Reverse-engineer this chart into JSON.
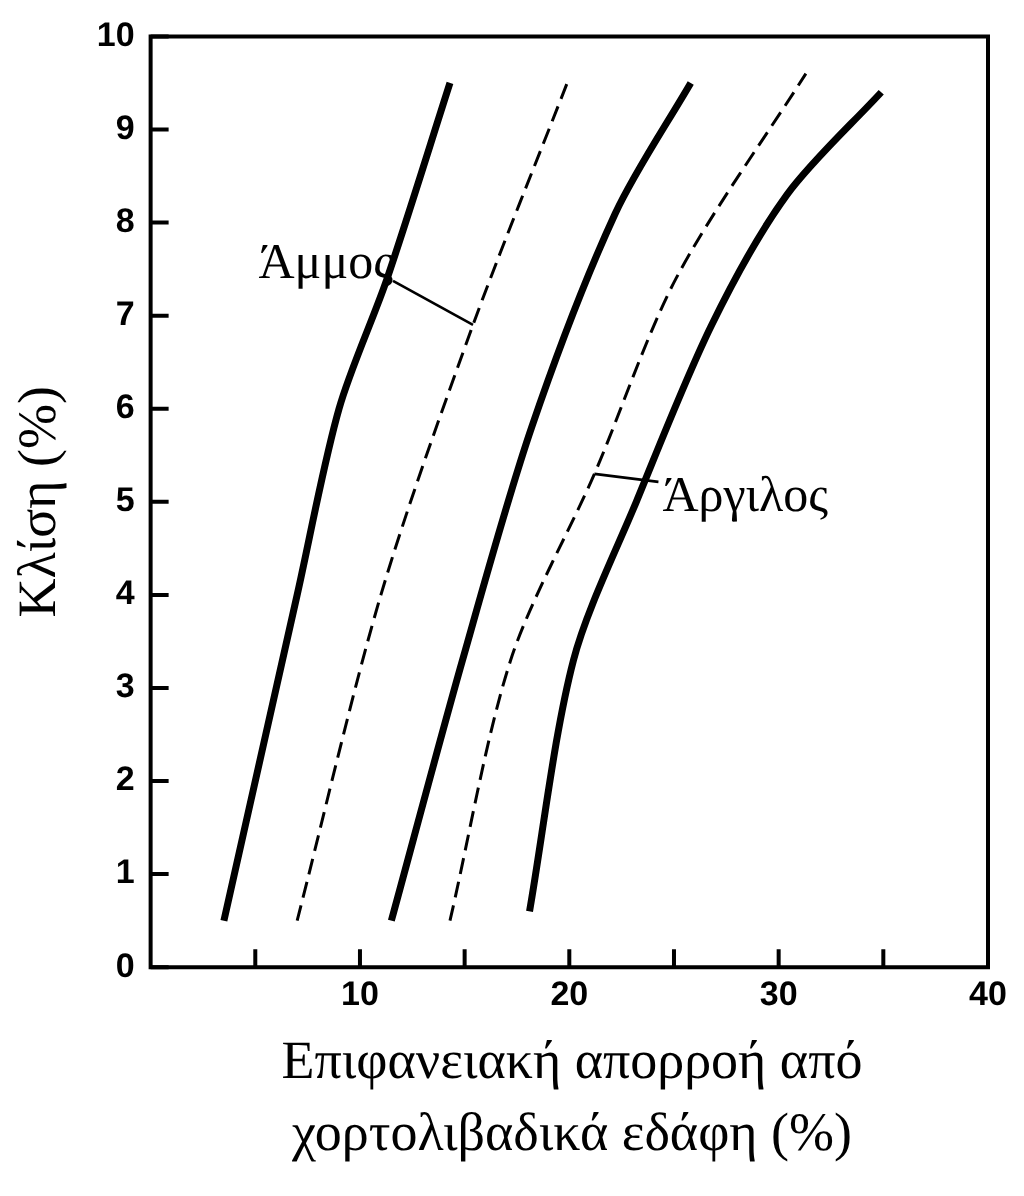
{
  "chart_data": {
    "type": "line",
    "xlabel": "Επιφανειακή απορροή από χορτολιβαδικά εδάφη (%)",
    "ylabel": "Κλίση (%)",
    "xlim": [
      0,
      40
    ],
    "ylim": [
      0,
      10
    ],
    "xticks": [
      {
        "value": 5,
        "label": null
      },
      10,
      {
        "value": 15,
        "label": null
      },
      20,
      {
        "value": 25,
        "label": null
      },
      30,
      {
        "value": 35,
        "label": null
      },
      40
    ],
    "yticks": [
      0,
      1,
      2,
      3,
      4,
      5,
      6,
      7,
      8,
      9,
      10
    ],
    "grid": false,
    "legend": false,
    "marker": "none",
    "series": [
      {
        "color": "#000000",
        "line_style": "solid",
        "x": [
          3.5,
          7.0,
          9.0,
          11.3,
          14.3
        ],
        "values": [
          0.5,
          4.0,
          6.0,
          7.4,
          9.5
        ]
      },
      {
        "color": "#000000",
        "line_style": "dashed",
        "x": [
          7.0,
          11.0,
          15.4,
          19.9
        ],
        "values": [
          0.5,
          4.0,
          6.9,
          9.5
        ]
      },
      {
        "color": "#000000",
        "line_style": "solid",
        "x": [
          11.5,
          14.9,
          18.2,
          22.2,
          25.8
        ],
        "values": [
          0.5,
          3.3,
          5.8,
          8.1,
          9.5
        ]
      },
      {
        "color": "#000000",
        "line_style": "dashed",
        "x": [
          14.3,
          17.2,
          21.2,
          25.1,
          31.3
        ],
        "values": [
          0.5,
          3.3,
          5.3,
          7.4,
          9.6
        ]
      },
      {
        "color": "#000000",
        "line_style": "solid",
        "x": [
          18.1,
          20.2,
          23.2,
          26.8,
          30.4,
          34.9
        ],
        "values": [
          0.6,
          3.3,
          5.0,
          6.9,
          8.3,
          9.4
        ]
      }
    ],
    "annotations": [
      {
        "text": "Άμμος",
        "x": 15.4,
        "y": 6.9
      },
      {
        "text": "Άργιλος",
        "x": 21.2,
        "y": 5.3
      }
    ]
  }
}
